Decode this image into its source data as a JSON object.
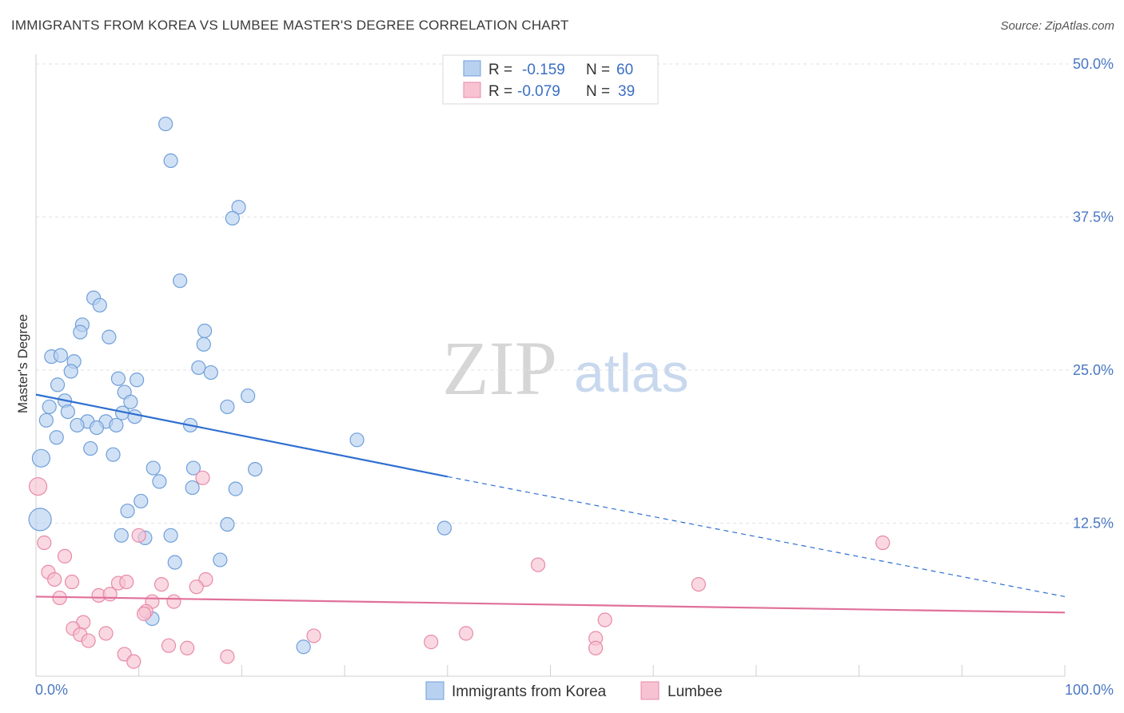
{
  "title": "IMMIGRANTS FROM KOREA VS LUMBEE MASTER'S DEGREE CORRELATION CHART",
  "source": "Source: ZipAtlas.com",
  "watermark": {
    "zip": "ZIP",
    "atlas": "atlas"
  },
  "colors": {
    "blue_fill": "#b9d1f0",
    "blue_stroke": "#6f9fda",
    "blue_line": "#2f6fd0",
    "pink_fill": "#f7c3d3",
    "pink_stroke": "#e88aa8",
    "pink_line": "#e0709a",
    "grid": "#e2e2e2",
    "tick_label": "#4a78c2"
  },
  "legend": {
    "rows": [
      {
        "r_label": "R =",
        "r_value": "-0.159",
        "n_label": "N =",
        "n_value": "60"
      },
      {
        "r_label": "R =",
        "r_value": "-0.079",
        "n_label": "N =",
        "n_value": "39"
      }
    ]
  },
  "chart_data": {
    "type": "scatter",
    "title": "IMMIGRANTS FROM KOREA VS LUMBEE MASTER'S DEGREE CORRELATION CHART",
    "ylabel": "Master's Degree",
    "xlabel": "",
    "x_range": [
      0,
      100
    ],
    "y_range": [
      0,
      50
    ],
    "x_tick_labels": [
      "0.0%",
      "100.0%"
    ],
    "y_ticks": [
      {
        "value": 50,
        "label": "50.0%"
      },
      {
        "value": 37.5,
        "label": "37.5%"
      },
      {
        "value": 25,
        "label": "25.0%"
      },
      {
        "value": 12.5,
        "label": "12.5%"
      }
    ],
    "grid": true,
    "series": [
      {
        "name": "Immigrants from Korea",
        "color": "blue",
        "trend": {
          "x0": 0,
          "y0": 23.0,
          "x1": 40,
          "y1": 16.3,
          "x_end": 100,
          "y_end": 6.5
        },
        "points": [
          {
            "x": 12.6,
            "y": 45.1
          },
          {
            "x": 13.1,
            "y": 42.1
          },
          {
            "x": 19.7,
            "y": 38.3
          },
          {
            "x": 19.1,
            "y": 37.4
          },
          {
            "x": 14.0,
            "y": 32.3
          },
          {
            "x": 5.6,
            "y": 30.9
          },
          {
            "x": 6.2,
            "y": 30.3
          },
          {
            "x": 4.5,
            "y": 28.7
          },
          {
            "x": 4.3,
            "y": 28.1
          },
          {
            "x": 7.1,
            "y": 27.7
          },
          {
            "x": 16.4,
            "y": 28.2
          },
          {
            "x": 16.3,
            "y": 27.1
          },
          {
            "x": 1.5,
            "y": 26.1
          },
          {
            "x": 2.4,
            "y": 26.2
          },
          {
            "x": 3.7,
            "y": 25.7
          },
          {
            "x": 3.4,
            "y": 24.9
          },
          {
            "x": 15.8,
            "y": 25.2
          },
          {
            "x": 17.0,
            "y": 24.8
          },
          {
            "x": 8.0,
            "y": 24.3
          },
          {
            "x": 9.8,
            "y": 24.2
          },
          {
            "x": 2.1,
            "y": 23.8
          },
          {
            "x": 8.6,
            "y": 23.2
          },
          {
            "x": 20.6,
            "y": 22.9
          },
          {
            "x": 2.8,
            "y": 22.5
          },
          {
            "x": 9.2,
            "y": 22.4
          },
          {
            "x": 1.3,
            "y": 22.0
          },
          {
            "x": 18.6,
            "y": 22.0
          },
          {
            "x": 3.1,
            "y": 21.6
          },
          {
            "x": 8.4,
            "y": 21.5
          },
          {
            "x": 9.6,
            "y": 21.2
          },
          {
            "x": 1.0,
            "y": 20.9
          },
          {
            "x": 5.0,
            "y": 20.8
          },
          {
            "x": 6.8,
            "y": 20.8
          },
          {
            "x": 4.0,
            "y": 20.5
          },
          {
            "x": 7.8,
            "y": 20.5
          },
          {
            "x": 5.9,
            "y": 20.3
          },
          {
            "x": 15.0,
            "y": 20.5
          },
          {
            "x": 2.0,
            "y": 19.5
          },
          {
            "x": 31.2,
            "y": 19.3
          },
          {
            "x": 5.3,
            "y": 18.6
          },
          {
            "x": 7.5,
            "y": 18.1
          },
          {
            "x": 0.5,
            "y": 17.8
          },
          {
            "x": 11.4,
            "y": 17.0
          },
          {
            "x": 15.3,
            "y": 17.0
          },
          {
            "x": 21.3,
            "y": 16.9
          },
          {
            "x": 12.0,
            "y": 15.9
          },
          {
            "x": 15.2,
            "y": 15.4
          },
          {
            "x": 19.4,
            "y": 15.3
          },
          {
            "x": 10.2,
            "y": 14.3
          },
          {
            "x": 8.9,
            "y": 13.5
          },
          {
            "x": 0.4,
            "y": 12.8
          },
          {
            "x": 18.6,
            "y": 12.4
          },
          {
            "x": 39.7,
            "y": 12.1
          },
          {
            "x": 8.3,
            "y": 11.5
          },
          {
            "x": 13.1,
            "y": 11.5
          },
          {
            "x": 10.6,
            "y": 11.3
          },
          {
            "x": 17.9,
            "y": 9.5
          },
          {
            "x": 13.5,
            "y": 9.3
          },
          {
            "x": 11.3,
            "y": 4.7
          },
          {
            "x": 26.0,
            "y": 2.4
          }
        ]
      },
      {
        "name": "Lumbee",
        "color": "pink",
        "trend": {
          "x0": 0,
          "y0": 6.5,
          "x1": 100,
          "y1": 5.2
        },
        "points": [
          {
            "x": 0.2,
            "y": 15.5
          },
          {
            "x": 16.2,
            "y": 16.2
          },
          {
            "x": 10.0,
            "y": 11.5
          },
          {
            "x": 0.8,
            "y": 10.9
          },
          {
            "x": 82.3,
            "y": 10.9
          },
          {
            "x": 2.8,
            "y": 9.8
          },
          {
            "x": 48.8,
            "y": 9.1
          },
          {
            "x": 1.2,
            "y": 8.5
          },
          {
            "x": 1.8,
            "y": 7.9
          },
          {
            "x": 3.5,
            "y": 7.7
          },
          {
            "x": 8.0,
            "y": 7.6
          },
          {
            "x": 8.8,
            "y": 7.7
          },
          {
            "x": 12.2,
            "y": 7.5
          },
          {
            "x": 16.5,
            "y": 7.9
          },
          {
            "x": 15.6,
            "y": 7.3
          },
          {
            "x": 64.4,
            "y": 7.5
          },
          {
            "x": 6.1,
            "y": 6.6
          },
          {
            "x": 7.2,
            "y": 6.7
          },
          {
            "x": 2.3,
            "y": 6.4
          },
          {
            "x": 11.3,
            "y": 6.1
          },
          {
            "x": 13.4,
            "y": 6.1
          },
          {
            "x": 10.7,
            "y": 5.3
          },
          {
            "x": 10.5,
            "y": 5.1
          },
          {
            "x": 55.3,
            "y": 4.6
          },
          {
            "x": 4.6,
            "y": 4.4
          },
          {
            "x": 3.6,
            "y": 3.9
          },
          {
            "x": 4.3,
            "y": 3.4
          },
          {
            "x": 6.8,
            "y": 3.5
          },
          {
            "x": 27.0,
            "y": 3.3
          },
          {
            "x": 41.8,
            "y": 3.5
          },
          {
            "x": 54.4,
            "y": 3.1
          },
          {
            "x": 5.1,
            "y": 2.9
          },
          {
            "x": 38.4,
            "y": 2.8
          },
          {
            "x": 12.9,
            "y": 2.5
          },
          {
            "x": 14.7,
            "y": 2.3
          },
          {
            "x": 54.4,
            "y": 2.3
          },
          {
            "x": 8.6,
            "y": 1.8
          },
          {
            "x": 18.6,
            "y": 1.6
          },
          {
            "x": 9.5,
            "y": 1.2
          }
        ]
      }
    ]
  }
}
